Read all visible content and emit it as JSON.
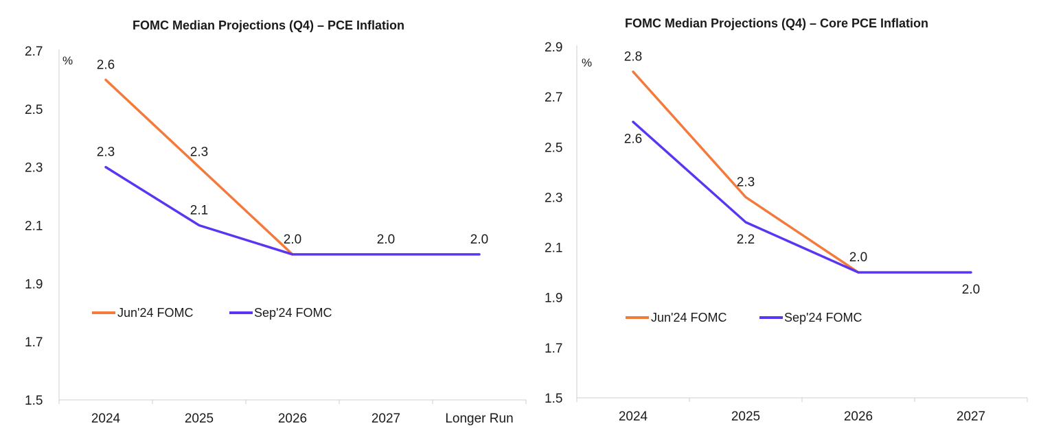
{
  "chart_data": [
    {
      "type": "line",
      "title": "FOMC Median Projections (Q4) – PCE Inflation",
      "unit": "%",
      "categories": [
        "2024",
        "2025",
        "2026",
        "2027",
        "Longer Run"
      ],
      "yticks": [
        "1.5",
        "1.7",
        "1.9",
        "2.1",
        "2.3",
        "2.5",
        "2.7"
      ],
      "ylim": [
        1.5,
        2.7
      ],
      "legend_position": "center-left",
      "series": [
        {
          "name": "Jun'24 FOMC",
          "color": "#F47A3C",
          "values": [
            2.6,
            2.3,
            2.0,
            null,
            null
          ]
        },
        {
          "name": "Sep'24 FOMC",
          "color": "#5B36F2",
          "values": [
            2.3,
            2.1,
            2.0,
            2.0,
            2.0
          ]
        }
      ],
      "data_labels": [
        {
          "text": "2.6",
          "series": 0,
          "index": 0,
          "pos": "above"
        },
        {
          "text": "2.3",
          "series": 0,
          "index": 1,
          "pos": "above"
        },
        {
          "text": "2.3",
          "series": 1,
          "index": 0,
          "pos": "above"
        },
        {
          "text": "2.1",
          "series": 1,
          "index": 1,
          "pos": "above"
        },
        {
          "text": "2.0",
          "series": 1,
          "index": 2,
          "pos": "above"
        },
        {
          "text": "2.0",
          "series": 1,
          "index": 3,
          "pos": "above"
        },
        {
          "text": "2.0",
          "series": 1,
          "index": 4,
          "pos": "above"
        }
      ]
    },
    {
      "type": "line",
      "title": "FOMC Median Projections (Q4) – Core PCE Inflation",
      "unit": "%",
      "categories": [
        "2024",
        "2025",
        "2026",
        "2027"
      ],
      "yticks": [
        "1.5",
        "1.7",
        "1.9",
        "2.1",
        "2.3",
        "2.5",
        "2.7",
        "2.9"
      ],
      "ylim": [
        1.5,
        2.9
      ],
      "legend_position": "center-left",
      "series": [
        {
          "name": "Jun'24 FOMC",
          "color": "#F47A3C",
          "values": [
            2.8,
            2.3,
            2.0,
            null
          ]
        },
        {
          "name": "Sep'24 FOMC",
          "color": "#5B36F2",
          "values": [
            2.6,
            2.2,
            2.0,
            2.0
          ]
        }
      ],
      "data_labels": [
        {
          "text": "2.8",
          "series": 0,
          "index": 0,
          "pos": "above"
        },
        {
          "text": "2.3",
          "series": 0,
          "index": 1,
          "pos": "above"
        },
        {
          "text": "2.6",
          "series": 1,
          "index": 0,
          "pos": "below"
        },
        {
          "text": "2.2",
          "series": 1,
          "index": 1,
          "pos": "below"
        },
        {
          "text": "2.0",
          "series": 1,
          "index": 2,
          "pos": "above"
        },
        {
          "text": "2.0",
          "series": 1,
          "index": 3,
          "pos": "below"
        }
      ]
    }
  ]
}
